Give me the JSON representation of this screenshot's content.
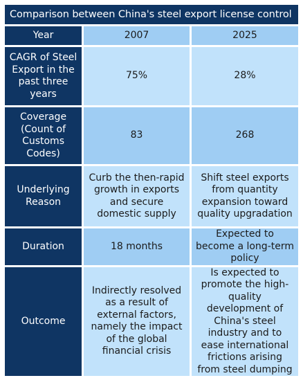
{
  "title": "Comparison between China's steel export license control",
  "table": {
    "header": {
      "label": "Year",
      "col1": "2007",
      "col2": "2025"
    },
    "rows": [
      {
        "label": "CAGR of Steel Export in the past three years",
        "col1": "75%",
        "col2": "28%"
      },
      {
        "label": "Coverage (Count of Customs Codes)",
        "col1": "83",
        "col2": "268"
      },
      {
        "label": "Underlying Reason",
        "col1": "Curb the then-rapid growth in exports and secure domestic supply",
        "col2": "Shift steel exports from quantity expansion toward quality upgradation"
      },
      {
        "label": "Duration",
        "col1": "18 months",
        "col2": "Expected to become a long-term policy"
      },
      {
        "label": "Outcome",
        "col1": "Indirectly resolved as a result of external factors, namely the impact of the global financial crisis",
        "col2": "Is expected to promote the high-quality development of China's steel industry and to ease international frictions arising from steel dumping"
      }
    ]
  },
  "colors": {
    "header_dark": "#0f3563",
    "cell_light": "#c1e2fb",
    "cell_medium": "#9fcdf3"
  }
}
